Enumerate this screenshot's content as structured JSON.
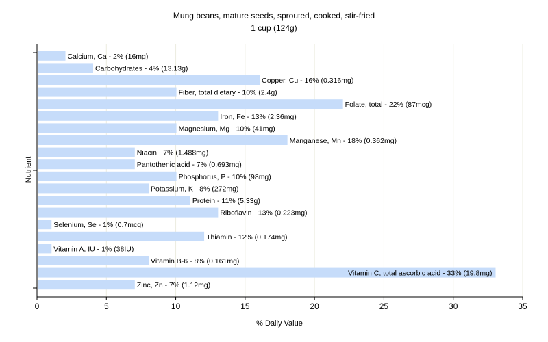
{
  "chart_data": {
    "type": "bar",
    "orientation": "horizontal",
    "title": "Mung beans, mature seeds, sprouted, cooked, stir-fried",
    "subtitle": "1 cup (124g)",
    "xlabel": "% Daily Value",
    "ylabel": "Nutrient",
    "xlim": [
      0,
      35
    ],
    "xticks": [
      0,
      5,
      10,
      15,
      20,
      25,
      30,
      35
    ],
    "grid": true,
    "bar_color": "#c6dcfa",
    "categories": [
      "Calcium, Ca - 2% (16mg)",
      "Carbohydrates - 4% (13.13g)",
      "Copper, Cu - 16% (0.316mg)",
      "Fiber, total dietary - 10% (2.4g)",
      "Folate, total - 22% (87mcg)",
      "Iron, Fe - 13% (2.36mg)",
      "Magnesium, Mg - 10% (41mg)",
      "Manganese, Mn - 18% (0.362mg)",
      "Niacin - 7% (1.488mg)",
      "Pantothenic acid - 7% (0.693mg)",
      "Phosphorus, P - 10% (98mg)",
      "Potassium, K - 8% (272mg)",
      "Protein - 11% (5.33g)",
      "Riboflavin - 13% (0.223mg)",
      "Selenium, Se - 1% (0.7mcg)",
      "Thiamin - 12% (0.174mg)",
      "Vitamin A, IU - 1% (38IU)",
      "Vitamin B-6 - 8% (0.161mg)",
      "Vitamin C, total ascorbic acid - 33% (19.8mg)",
      "Zinc, Zn - 7% (1.12mg)"
    ],
    "values": [
      2,
      4,
      16,
      10,
      22,
      13,
      10,
      18,
      7,
      7,
      10,
      8,
      11,
      13,
      1,
      12,
      1,
      8,
      33,
      7
    ]
  }
}
